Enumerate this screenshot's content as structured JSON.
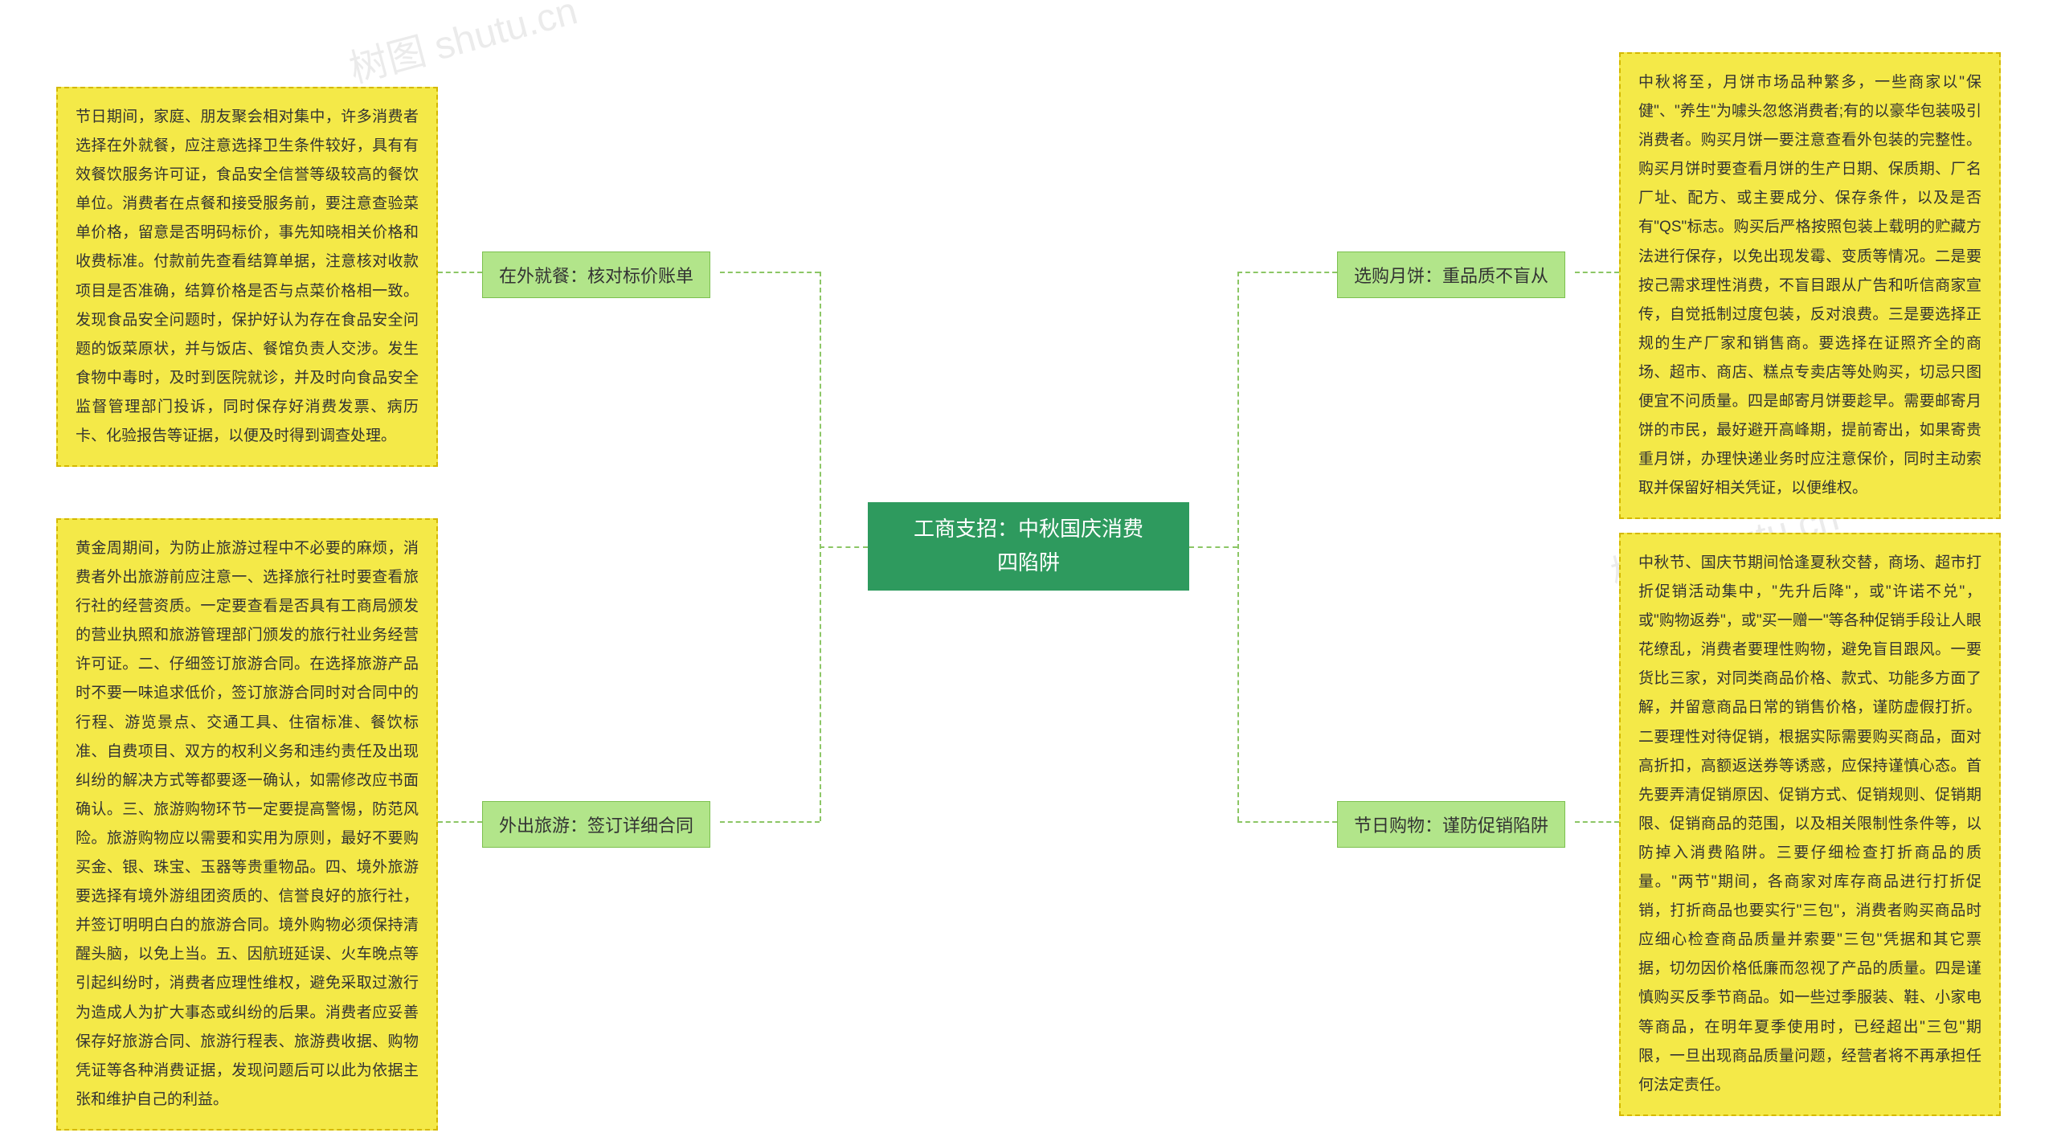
{
  "diagram": {
    "type": "mindmap",
    "background_color": "#ffffff",
    "center": {
      "label": "工商支招：中秋国庆消费\n四陷阱",
      "bg_color": "#2e9a5e",
      "text_color": "#ffffff",
      "font_size": 26
    },
    "branches": {
      "left_top": {
        "label": "在外就餐：核对标价账单",
        "detail": "节日期间，家庭、朋友聚会相对集中，许多消费者选择在外就餐，应注意选择卫生条件较好，具有有效餐饮服务许可证，食品安全信誉等级较高的餐饮单位。消费者在点餐和接受服务前，要注意查验菜单价格，留意是否明码标价，事先知晓相关价格和收费标准。付款前先查看结算单据，注意核对收款项目是否准确，结算价格是否与点菜价格相一致。发现食品安全问题时，保护好认为存在食品安全问题的饭菜原状，并与饭店、餐馆负责人交涉。发生食物中毒时，及时到医院就诊，并及时向食品安全监督管理部门投诉，同时保存好消费发票、病历卡、化验报告等证据，以便及时得到调查处理。"
      },
      "left_bottom": {
        "label": "外出旅游：签订详细合同",
        "detail": "黄金周期间，为防止旅游过程中不必要的麻烦，消费者外出旅游前应注意一、选择旅行社时要查看旅行社的经营资质。一定要查看是否具有工商局颁发的营业执照和旅游管理部门颁发的旅行社业务经营许可证。二、仔细签订旅游合同。在选择旅游产品时不要一味追求低价，签订旅游合同时对合同中的行程、游览景点、交通工具、住宿标准、餐饮标准、自费项目、双方的权利义务和违约责任及出现纠纷的解决方式等都要逐一确认，如需修改应书面确认。三、旅游购物环节一定要提高警惕，防范风险。旅游购物应以需要和实用为原则，最好不要购买金、银、珠宝、玉器等贵重物品。四、境外旅游要选择有境外游组团资质的、信誉良好的旅行社，并签订明明白白的旅游合同。境外购物必须保持清醒头脑，以免上当。五、因航班延误、火车晚点等引起纠纷时，消费者应理性维权，避免采取过激行为造成人为扩大事态或纠纷的后果。消费者应妥善保存好旅游合同、旅游行程表、旅游费收据、购物凭证等各种消费证据，发现问题后可以此为依据主张和维护自己的利益。"
      },
      "right_top": {
        "label": "选购月饼：重品质不盲从",
        "detail": "中秋将至，月饼市场品种繁多，一些商家以\"保健\"、\"养生\"为噱头忽悠消费者;有的以豪华包装吸引消费者。购买月饼一要注意查看外包装的完整性。购买月饼时要查看月饼的生产日期、保质期、厂名厂址、配方、或主要成分、保存条件，以及是否有\"QS\"标志。购买后严格按照包装上载明的贮藏方法进行保存，以免出现发霉、变质等情况。二是要按己需求理性消费，不盲目跟从广告和听信商家宣传，自觉抵制过度包装，反对浪费。三是要选择正规的生产厂家和销售商。要选择在证照齐全的商场、超市、商店、糕点专卖店等处购买，切忌只图便宜不问质量。四是邮寄月饼要趁早。需要邮寄月饼的市民，最好避开高峰期，提前寄出，如果寄贵重月饼，办理快递业务时应注意保价，同时主动索取并保留好相关凭证，以便维权。"
      },
      "right_bottom": {
        "label": "节日购物：谨防促销陷阱",
        "detail": "中秋节、国庆节期间恰逢夏秋交替，商场、超市打折促销活动集中，\"先升后降\"，或\"许诺不兑\"，或\"购物返券\"，或\"买一赠一\"等各种促销手段让人眼花缭乱，消费者要理性购物，避免盲目跟风。一要货比三家，对同类商品价格、款式、功能多方面了解，并留意商品日常的销售价格，谨防虚假打折。二要理性对待促销，根据实际需要购买商品，面对高折扣，高额返送券等诱惑，应保持谨慎心态。首先要弄清促销原因、促销方式、促销规则、促销期限、促销商品的范围，以及相关限制性条件等，以防掉入消费陷阱。三要仔细检查打折商品的质量。\"两节\"期间，各商家对库存商品进行打折促销，打折商品也要实行\"三包\"，消费者购买商品时应细心检查商品质量并索要\"三包\"凭据和其它票据，切勿因价格低廉而忽视了产品的质量。四是谨慎购买反季节商品。如一些过季服装、鞋、小家电等商品，在明年夏季使用时，已经超出\"三包\"期限，一旦出现商品质量问题，经营者将不再承担任何法定责任。"
      }
    },
    "styling": {
      "branch_bg": "#b2e58a",
      "branch_border": "#7cc04f",
      "detail_bg": "#f4e948",
      "detail_border": "#d4b800",
      "connector_color": "#8cc665",
      "branch_font_size": 22,
      "detail_font_size": 19
    },
    "watermark": "树图 shutu.cn"
  }
}
